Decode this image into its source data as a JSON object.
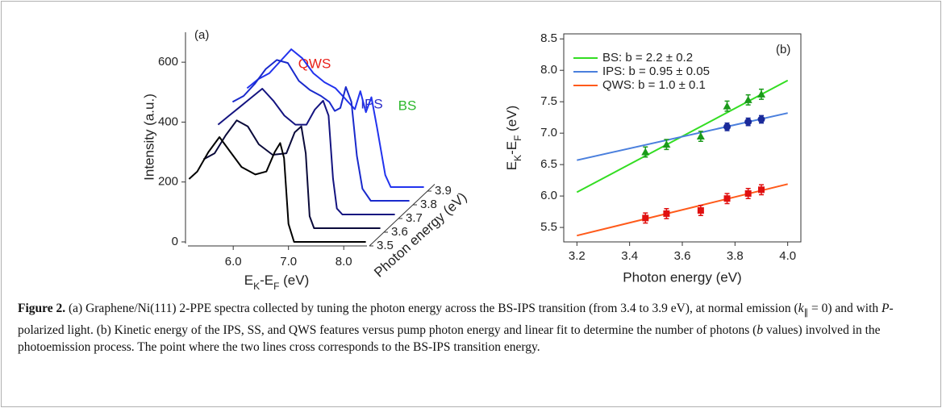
{
  "chart_data": [
    {
      "type": "waterfall",
      "label": "(a)",
      "x_label": [
        "E",
        "K",
        "-E",
        "F",
        " (eV)"
      ],
      "y_label": "Intensity (a.u.)",
      "z_label": "Photon energy (eV)",
      "xlim": [
        5.18,
        8.42
      ],
      "xticks": [
        {
          "value": 6,
          "label": "6.0"
        },
        {
          "value": 7,
          "label": "7.0"
        },
        {
          "value": 8,
          "label": "8.0"
        }
      ],
      "ylim": [
        0,
        700
      ],
      "yticks": [
        0,
        200,
        400,
        600
      ],
      "zlim": [
        3.5,
        3.95
      ],
      "zticks": [
        3.5,
        3.6,
        3.7,
        3.8,
        3.9
      ],
      "series": [
        {
          "z": 3.5,
          "color": "#000000",
          "x": [
            5.2,
            5.35,
            5.55,
            5.75,
            5.95,
            6.15,
            6.4,
            6.6,
            6.75,
            6.85,
            6.92,
            7.0,
            7.1,
            8.4
          ],
          "values": [
            210,
            235,
            300,
            350,
            300,
            250,
            225,
            235,
            300,
            330,
            280,
            60,
            0,
            0
          ]
        },
        {
          "z": 3.6,
          "color": "#0a0a3a",
          "x": [
            5.2,
            5.4,
            5.6,
            5.8,
            6.0,
            6.2,
            6.45,
            6.7,
            6.85,
            6.97,
            7.05,
            7.12,
            7.2,
            8.4
          ],
          "values": [
            230,
            250,
            310,
            360,
            340,
            280,
            245,
            250,
            320,
            340,
            250,
            40,
            0,
            0
          ]
        },
        {
          "z": 3.7,
          "color": "#141480",
          "x": [
            5.2,
            5.4,
            5.6,
            5.8,
            6.0,
            6.2,
            6.4,
            6.6,
            6.8,
            6.95,
            7.1,
            7.2,
            7.28,
            7.35,
            7.45,
            8.4
          ],
          "values": [
            300,
            330,
            360,
            390,
            420,
            380,
            330,
            300,
            300,
            350,
            380,
            330,
            120,
            20,
            0,
            0
          ]
        },
        {
          "z": 3.8,
          "color": "#1a2acc",
          "x": [
            5.2,
            5.4,
            5.6,
            5.8,
            6.0,
            6.2,
            6.4,
            6.6,
            6.8,
            6.95,
            7.05,
            7.15,
            7.25,
            7.35,
            7.45,
            7.55,
            7.7,
            8.4
          ],
          "values": [
            330,
            350,
            390,
            440,
            470,
            460,
            400,
            370,
            350,
            330,
            300,
            310,
            380,
            330,
            150,
            40,
            0,
            0
          ]
        },
        {
          "z": 3.9,
          "color": "#2233ee",
          "x": [
            5.2,
            5.4,
            5.6,
            5.8,
            6.0,
            6.2,
            6.4,
            6.6,
            6.8,
            6.95,
            7.05,
            7.15,
            7.25,
            7.35,
            7.45,
            7.55,
            7.7,
            7.8,
            8.4
          ],
          "values": [
            330,
            360,
            380,
            420,
            460,
            430,
            380,
            350,
            330,
            300,
            280,
            260,
            320,
            250,
            300,
            200,
            40,
            0,
            0
          ]
        }
      ],
      "annotations": [
        {
          "text": "QWS",
          "color": "#e8201a"
        },
        {
          "text": "IPS",
          "color": "#2b2bc8"
        },
        {
          "text": "BS",
          "color": "#2db82d"
        }
      ]
    },
    {
      "type": "scatter",
      "label": "(b)",
      "x_label": "Photon energy (eV)",
      "y_label": [
        "E",
        "K",
        "-E",
        "F",
        " (eV)"
      ],
      "xlim": [
        3.15,
        4.05
      ],
      "xticks": [
        3.2,
        3.4,
        3.6,
        3.8,
        {
          "value": 4,
          "label": "4.0"
        }
      ],
      "ylim": [
        5.27,
        8.58
      ],
      "yticks": [
        5.5,
        {
          "value": 6,
          "label": "6.0"
        },
        6.5,
        {
          "value": 7,
          "label": "7.0"
        },
        7.5,
        {
          "value": 8,
          "label": "8.0"
        },
        8.5
      ],
      "series": [
        {
          "marker": "triangle",
          "color": "#1a9a1a",
          "x": [
            3.46,
            3.54,
            3.67,
            3.77,
            3.85,
            3.9
          ],
          "values": [
            6.7,
            6.82,
            6.95,
            7.43,
            7.53,
            7.62
          ],
          "errors": [
            0.08,
            0.08,
            0.08,
            0.08,
            0.08,
            0.08
          ]
        },
        {
          "marker": "circle",
          "color": "#1a2a9a",
          "x": [
            3.77,
            3.85,
            3.9
          ],
          "values": [
            7.1,
            7.18,
            7.22
          ],
          "errors": [
            0.06,
            0.06,
            0.06
          ]
        },
        {
          "marker": "square",
          "color": "#e01010",
          "x": [
            3.46,
            3.54,
            3.67,
            3.77,
            3.85,
            3.9
          ],
          "values": [
            5.65,
            5.72,
            5.77,
            5.96,
            6.04,
            6.1
          ],
          "errors": [
            0.08,
            0.08,
            0.08,
            0.08,
            0.08,
            0.08
          ]
        }
      ],
      "fits": [
        {
          "name": "BS: b = 2.2 ± 0.2",
          "color": "#33dd22",
          "x": [
            3.2,
            4.0
          ],
          "values": [
            6.06,
            7.84
          ]
        },
        {
          "name": "IPS: b = 0.95 ± 0.05",
          "color": "#4a7fdd",
          "x": [
            3.2,
            4.0
          ],
          "values": [
            6.57,
            7.32
          ]
        },
        {
          "name": "QWS: b = 1.0 ± 0.1",
          "color": "#ff5a1a",
          "x": [
            3.2,
            4.0
          ],
          "values": [
            5.37,
            6.19
          ]
        }
      ],
      "legend": "upper left"
    }
  ],
  "caption": {
    "runs": [
      {
        "text": "Figure 2.",
        "style": "bold"
      },
      {
        "text": " (a) Graphene/Ni(111) 2-PPE spectra collected by tuning the photon energy across the BS-IPS transition (from 3.4 to 3.9 eV), at normal emission ("
      },
      {
        "text": "k",
        "style": "italic"
      },
      {
        "text": "∥",
        "style": "sub"
      },
      {
        "text": " = 0) and with "
      },
      {
        "text": "P",
        "style": "italic"
      },
      {
        "text": "-polarized light. (b) Kinetic energy of the IPS, SS, and QWS features versus pump photon energy and linear fit to determine the number of photons ("
      },
      {
        "text": "b",
        "style": "italic"
      },
      {
        "text": " values) involved in the photoemission process. The point where the two lines cross corresponds to the BS-IPS transition energy."
      }
    ]
  }
}
